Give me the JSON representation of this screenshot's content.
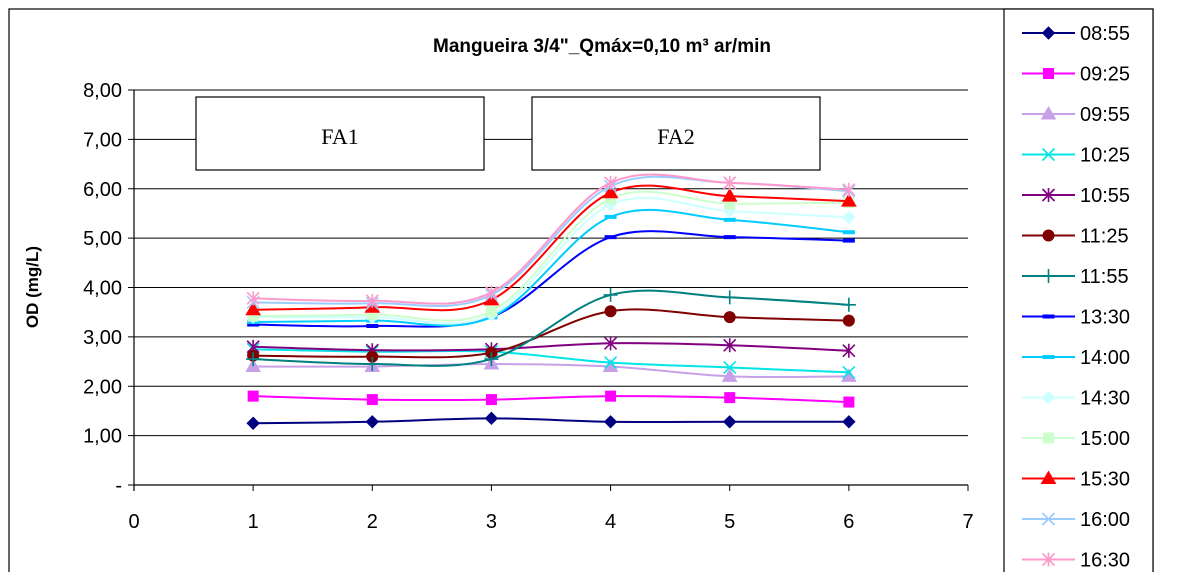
{
  "chart_data": {
    "type": "line",
    "title": "Mangueira 3/4\"_Qmáx=0,10 m³ ar/min",
    "xlabel": "",
    "ylabel": "OD (mg/L)",
    "xlim": [
      0,
      7
    ],
    "ylim": [
      0,
      8
    ],
    "x_ticks": [
      "0",
      "1",
      "2",
      "3",
      "4",
      "5",
      "6",
      "7"
    ],
    "y_ticks": [
      "-",
      "1,00",
      "2,00",
      "3,00",
      "4,00",
      "5,00",
      "6,00",
      "7,00",
      "8,00"
    ],
    "grid": "horizontal",
    "smoothed": true,
    "legend_position": "right",
    "annotations": [
      {
        "text": "FA1"
      },
      {
        "text": "FA2"
      }
    ],
    "x": [
      1,
      2,
      3,
      4,
      5,
      6
    ],
    "series": [
      {
        "name": "08:55",
        "color": "#000080",
        "marker": "diamond",
        "values": [
          1.25,
          1.28,
          1.35,
          1.28,
          1.28,
          1.28
        ]
      },
      {
        "name": "09:25",
        "color": "#ff00ff",
        "marker": "square",
        "values": [
          1.8,
          1.73,
          1.73,
          1.8,
          1.77,
          1.68
        ]
      },
      {
        "name": "09:55",
        "color": "#c8a0e8",
        "marker": "triangle",
        "values": [
          2.4,
          2.4,
          2.45,
          2.4,
          2.2,
          2.2
        ]
      },
      {
        "name": "10:25",
        "color": "#00e5e5",
        "marker": "x",
        "values": [
          2.75,
          2.7,
          2.7,
          2.48,
          2.38,
          2.28
        ]
      },
      {
        "name": "10:55",
        "color": "#800080",
        "marker": "star",
        "values": [
          2.8,
          2.73,
          2.75,
          2.87,
          2.83,
          2.72
        ]
      },
      {
        "name": "11:25",
        "color": "#800000",
        "marker": "circle",
        "values": [
          2.62,
          2.6,
          2.68,
          3.52,
          3.4,
          3.33
        ]
      },
      {
        "name": "11:55",
        "color": "#008080",
        "marker": "plus",
        "values": [
          2.55,
          2.45,
          2.55,
          3.85,
          3.8,
          3.65
        ]
      },
      {
        "name": "13:30",
        "color": "#0000ff",
        "marker": "dash",
        "values": [
          3.25,
          3.22,
          3.4,
          5.02,
          5.02,
          4.95
        ]
      },
      {
        "name": "14:00",
        "color": "#00ccff",
        "marker": "dash",
        "values": [
          3.3,
          3.33,
          3.4,
          5.43,
          5.37,
          5.12
        ]
      },
      {
        "name": "14:30",
        "color": "#ccffff",
        "marker": "diamond",
        "values": [
          3.4,
          3.4,
          3.45,
          5.68,
          5.55,
          5.42
        ]
      },
      {
        "name": "15:00",
        "color": "#ccffcc",
        "marker": "square",
        "values": [
          3.42,
          3.45,
          3.52,
          5.8,
          5.7,
          5.72
        ]
      },
      {
        "name": "15:30",
        "color": "#ff0000",
        "marker": "triangle",
        "values": [
          3.55,
          3.6,
          3.75,
          5.92,
          5.85,
          5.75
        ]
      },
      {
        "name": "16:00",
        "color": "#99ccff",
        "marker": "x",
        "values": [
          3.7,
          3.68,
          3.85,
          6.05,
          6.12,
          5.95
        ]
      },
      {
        "name": "16:30",
        "color": "#ff99cc",
        "marker": "star",
        "values": [
          3.78,
          3.73,
          3.9,
          6.12,
          6.12,
          5.98
        ]
      }
    ]
  }
}
